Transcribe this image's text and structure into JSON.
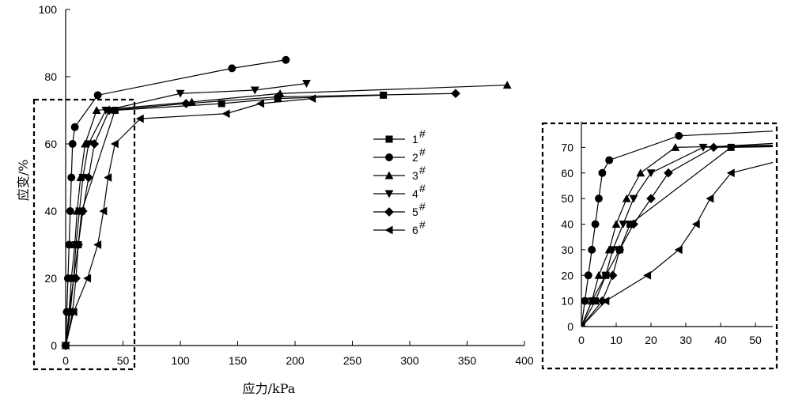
{
  "chart_data": [
    {
      "type": "line",
      "xlabel": "应力/kPa",
      "ylabel": "应变/%",
      "xlim": [
        0,
        400
      ],
      "ylim": [
        0,
        100
      ],
      "xticks": [
        "0",
        "50",
        "100",
        "150",
        "200",
        "250",
        "300",
        "350",
        "400"
      ],
      "yticks": [
        "0",
        "20",
        "40",
        "60",
        "80",
        "100"
      ],
      "legend_position": "center-right",
      "series": [
        {
          "name": "1",
          "marker": "square",
          "x": [
            0,
            4,
            7,
            11,
            14,
            43,
            136,
            185,
            277
          ],
          "y": [
            0,
            10,
            20,
            30,
            40,
            70,
            72,
            73.5,
            74.5
          ]
        },
        {
          "name": "2",
          "marker": "circle",
          "x": [
            0,
            1,
            2,
            3,
            4,
            5,
            6,
            8,
            28,
            145,
            192
          ],
          "y": [
            0,
            10,
            20,
            30,
            40,
            50,
            60,
            65,
            74.5,
            82.5,
            85
          ]
        },
        {
          "name": "3",
          "marker": "triangle-up",
          "x": [
            0,
            3,
            5,
            8,
            10,
            13,
            17,
            27,
            110,
            187,
            385
          ],
          "y": [
            0,
            10,
            20,
            30,
            40,
            50,
            60,
            70,
            72.5,
            75,
            77.5
          ]
        },
        {
          "name": "4",
          "marker": "triangle-down",
          "x": [
            0,
            3,
            7,
            9,
            12,
            15,
            20,
            35,
            100,
            165,
            210
          ],
          "y": [
            0,
            10,
            20,
            30,
            40,
            50,
            60,
            70,
            75,
            76,
            78
          ]
        },
        {
          "name": "5",
          "marker": "diamond",
          "x": [
            0,
            6,
            9,
            11,
            15,
            20,
            25,
            38,
            105,
            185,
            340
          ],
          "y": [
            0,
            10,
            20,
            30,
            40,
            50,
            60,
            70,
            72,
            74,
            75
          ]
        },
        {
          "name": "6",
          "marker": "triangle-left",
          "x": [
            0,
            7,
            19,
            28,
            33,
            37,
            43,
            65,
            140,
            170,
            215
          ],
          "y": [
            0,
            10,
            20,
            30,
            40,
            50,
            60,
            67.5,
            69,
            72,
            73.5
          ]
        }
      ],
      "legend_labels": [
        "1#",
        "2#",
        "3#",
        "4#",
        "5#",
        "6#"
      ]
    },
    {
      "type": "line",
      "role": "inset zoom of dashed region",
      "xlim": [
        0,
        55
      ],
      "ylim": [
        0,
        80
      ],
      "xticks": [
        "0",
        "10",
        "20",
        "30",
        "40",
        "50"
      ],
      "yticks": [
        "0",
        "10",
        "20",
        "30",
        "40",
        "50",
        "60",
        "70"
      ]
    }
  ]
}
